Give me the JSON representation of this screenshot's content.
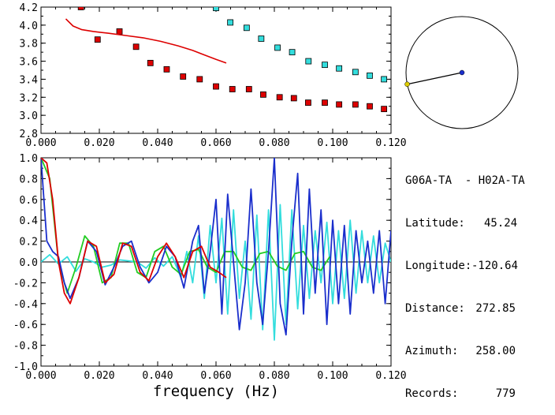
{
  "chart_data": [
    {
      "type": "scatter",
      "title": "",
      "xlabel": "",
      "ylabel": "",
      "xlim": [
        0,
        0.12
      ],
      "ylim": [
        2.8,
        4.2
      ],
      "xticks": [
        "0.000",
        "0.020",
        "0.040",
        "0.060",
        "0.080",
        "0.100",
        "0.120"
      ],
      "yticks": [
        "2.8",
        "3.0",
        "3.2",
        "3.4",
        "3.6",
        "3.8",
        "4.0",
        "4.2"
      ],
      "colors": {
        "red": "#dd0000",
        "cyan": "#33dddd",
        "line": "#dd0000"
      },
      "series": [
        {
          "kind": "markers",
          "color": "red",
          "x": [
            0.0137,
            0.0194,
            0.0269,
            0.0326,
            0.0375,
            0.0431,
            0.0487,
            0.0544,
            0.06,
            0.0656,
            0.0713,
            0.0762,
            0.0818,
            0.0867,
            0.0916,
            0.0973,
            0.1022,
            0.1078,
            0.1127,
            0.1176
          ],
          "y": [
            4.2,
            3.84,
            3.93,
            3.76,
            3.58,
            3.51,
            3.43,
            3.4,
            3.32,
            3.29,
            3.29,
            3.23,
            3.2,
            3.19,
            3.14,
            3.14,
            3.12,
            3.12,
            3.1,
            3.07
          ]
        },
        {
          "kind": "markers",
          "color": "cyan",
          "x": [
            0.06,
            0.0649,
            0.0705,
            0.0755,
            0.0811,
            0.0861,
            0.0917,
            0.0973,
            0.1022,
            0.1078,
            0.1127,
            0.1176
          ],
          "y": [
            4.19,
            4.03,
            3.97,
            3.85,
            3.75,
            3.7,
            3.6,
            3.56,
            3.52,
            3.48,
            3.44,
            3.4
          ]
        },
        {
          "kind": "line",
          "color": "line",
          "x": [
            0.0085,
            0.011,
            0.014,
            0.018,
            0.023,
            0.029,
            0.035,
            0.041,
            0.047,
            0.052,
            0.056,
            0.06,
            0.0635
          ],
          "y": [
            4.07,
            3.99,
            3.95,
            3.93,
            3.91,
            3.885,
            3.86,
            3.82,
            3.77,
            3.72,
            3.67,
            3.62,
            3.58
          ]
        }
      ]
    },
    {
      "type": "line",
      "title": "",
      "xlabel": "frequency (Hz)",
      "ylabel": "",
      "xlim": [
        0,
        0.12
      ],
      "ylim": [
        -1.0,
        1.0
      ],
      "xticks": [
        "0.000",
        "0.020",
        "0.040",
        "0.060",
        "0.080",
        "0.100",
        "0.120"
      ],
      "yticks": [
        "-1.0",
        "-0.8",
        "-0.6",
        "-0.4",
        "-0.2",
        "0.0",
        "0.2",
        "0.4",
        "0.6",
        "0.8",
        "1.0"
      ],
      "colors": {
        "blue": "#1a2ecc",
        "cyan": "#33dddd",
        "green": "#22cc22",
        "red": "#dd0000"
      },
      "series": [
        {
          "color": "cyan",
          "x": [
            0,
            0.003,
            0.006,
            0.009,
            0.012,
            0.015,
            0.018,
            0.021,
            0.024,
            0.027,
            0.03,
            0.033,
            0.036,
            0.039,
            0.042,
            0.045,
            0.048,
            0.05,
            0.052,
            0.054,
            0.056,
            0.058,
            0.06,
            0.062,
            0.064,
            0.066,
            0.068,
            0.07,
            0.072,
            0.074,
            0.076,
            0.078,
            0.08,
            0.082,
            0.084,
            0.086,
            0.088,
            0.09,
            0.092,
            0.094,
            0.096,
            0.098,
            0.1,
            0.102,
            0.104,
            0.106,
            0.108,
            0.11,
            0.112,
            0.114,
            0.116,
            0.118,
            0.12
          ],
          "y": [
            0.0,
            0.07,
            -0.02,
            0.05,
            -0.09,
            0.03,
            0.0,
            -0.05,
            -0.03,
            0.02,
            0.01,
            0.0,
            -0.06,
            0.04,
            -0.04,
            0.05,
            -0.15,
            0.1,
            -0.2,
            0.25,
            -0.35,
            0.35,
            -0.2,
            0.42,
            -0.5,
            0.5,
            -0.35,
            0.2,
            -0.55,
            0.45,
            -0.65,
            0.5,
            -0.75,
            0.55,
            -0.6,
            0.5,
            -0.45,
            0.35,
            -0.35,
            0.3,
            -0.2,
            0.38,
            -0.4,
            0.3,
            -0.35,
            0.4,
            -0.3,
            0.3,
            -0.2,
            0.25,
            -0.2,
            0.18,
            0.0
          ]
        },
        {
          "color": "green",
          "x": [
            0,
            0.003,
            0.006,
            0.009,
            0.012,
            0.015,
            0.018,
            0.021,
            0.024,
            0.027,
            0.03,
            0.033,
            0.036,
            0.039,
            0.042,
            0.045,
            0.048,
            0.051,
            0.054,
            0.057,
            0.06,
            0.063,
            0.066,
            0.069,
            0.072,
            0.075,
            0.078,
            0.081,
            0.084,
            0.087,
            0.09,
            0.093,
            0.096,
            0.099
          ],
          "y": [
            1.0,
            0.8,
            0.0,
            -0.3,
            -0.05,
            0.25,
            0.15,
            -0.2,
            -0.15,
            0.18,
            0.18,
            -0.1,
            -0.15,
            0.1,
            0.15,
            -0.05,
            -0.12,
            0.1,
            0.12,
            -0.05,
            -0.1,
            0.1,
            0.1,
            -0.05,
            -0.08,
            0.08,
            0.1,
            -0.04,
            -0.08,
            0.08,
            0.1,
            -0.05,
            -0.08,
            0.05
          ]
        },
        {
          "color": "blue",
          "x": [
            0,
            0.002,
            0.004,
            0.006,
            0.008,
            0.01,
            0.013,
            0.016,
            0.019,
            0.022,
            0.025,
            0.028,
            0.031,
            0.034,
            0.037,
            0.04,
            0.043,
            0.046,
            0.049,
            0.052,
            0.054,
            0.056,
            0.058,
            0.06,
            0.062,
            0.064,
            0.066,
            0.068,
            0.07,
            0.072,
            0.074,
            0.076,
            0.078,
            0.08,
            0.082,
            0.084,
            0.086,
            0.088,
            0.09,
            0.092,
            0.094,
            0.096,
            0.098,
            0.1,
            0.102,
            0.104,
            0.106,
            0.108,
            0.11,
            0.112,
            0.114,
            0.116,
            0.118,
            0.12
          ],
          "y": [
            1.0,
            0.2,
            0.1,
            0.05,
            -0.2,
            -0.35,
            -0.15,
            0.2,
            0.1,
            -0.22,
            -0.05,
            0.15,
            0.2,
            -0.05,
            -0.2,
            -0.1,
            0.15,
            0.05,
            -0.25,
            0.2,
            0.35,
            -0.3,
            0.1,
            0.6,
            -0.5,
            0.65,
            0.0,
            -0.65,
            -0.2,
            0.7,
            -0.2,
            -0.6,
            0.1,
            1.0,
            -0.4,
            -0.7,
            0.2,
            0.85,
            -0.5,
            0.7,
            -0.3,
            0.5,
            -0.6,
            0.4,
            -0.4,
            0.35,
            -0.5,
            0.3,
            -0.2,
            0.2,
            -0.3,
            0.3,
            -0.4,
            0.3
          ]
        },
        {
          "color": "red",
          "x": [
            0,
            0.002,
            0.004,
            0.006,
            0.008,
            0.01,
            0.013,
            0.016,
            0.019,
            0.022,
            0.025,
            0.028,
            0.031,
            0.034,
            0.037,
            0.04,
            0.043,
            0.046,
            0.049,
            0.052,
            0.055,
            0.058,
            0.061,
            0.0635
          ],
          "y": [
            1.0,
            0.95,
            0.6,
            0.0,
            -0.3,
            -0.4,
            -0.15,
            0.2,
            0.15,
            -0.2,
            -0.12,
            0.18,
            0.15,
            -0.1,
            -0.18,
            0.05,
            0.18,
            0.05,
            -0.15,
            0.1,
            0.15,
            -0.05,
            -0.1,
            -0.15
          ]
        }
      ]
    }
  ],
  "station_map": {
    "circle_color": "#000000",
    "ray_color": "#000000",
    "end_dot_color": "#1a2ecc",
    "start_dot_color": "#ddcc00",
    "azimuth_deg": 258.0
  },
  "info": {
    "pair": "G06A-TA  - H02A-TA",
    "latitude_label": "Latitude:",
    "latitude_value": "45.24",
    "longitude_label": "Longitude:",
    "longitude_value": "-120.64",
    "distance_label": "Distance:",
    "distance_value": "272.85",
    "azimuth_label": "Azimuth:",
    "azimuth_value": "258.00",
    "records_label": "Records:",
    "records_value": "779"
  }
}
